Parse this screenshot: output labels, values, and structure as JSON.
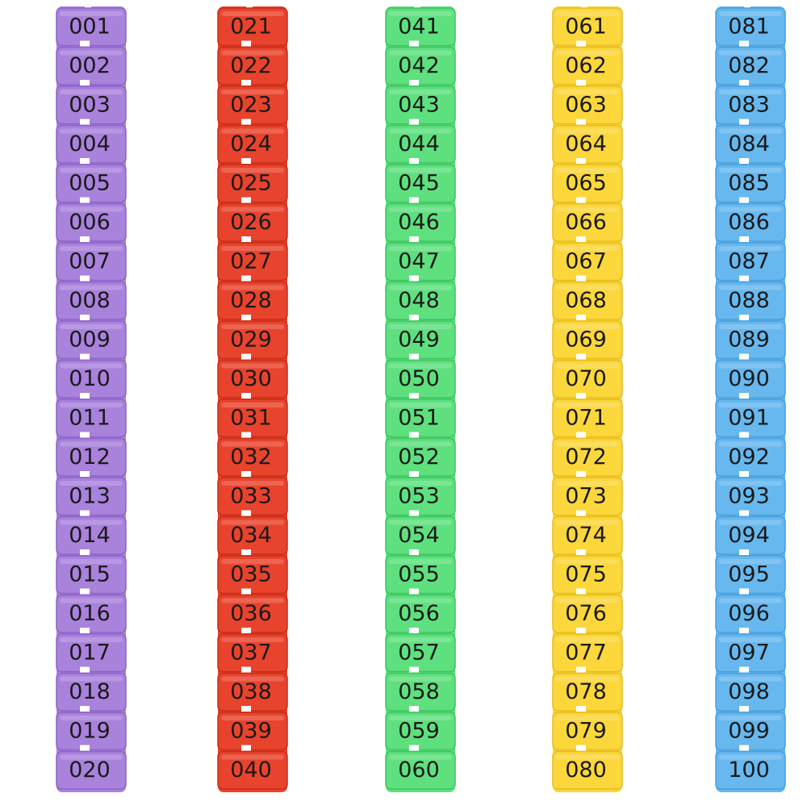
{
  "columns": [
    {
      "labels": [
        "001",
        "002",
        "003",
        "004",
        "005",
        "006",
        "007",
        "008",
        "009",
        "010",
        "011",
        "012",
        "013",
        "014",
        "015",
        "016",
        "017",
        "018",
        "019",
        "020"
      ]
    },
    {
      "labels": [
        "021",
        "022",
        "023",
        "024",
        "025",
        "026",
        "027",
        "028",
        "029",
        "030",
        "031",
        "032",
        "033",
        "034",
        "035",
        "036",
        "037",
        "038",
        "039",
        "040"
      ]
    },
    {
      "labels": [
        "041",
        "042",
        "043",
        "044",
        "045",
        "046",
        "047",
        "048",
        "049",
        "050",
        "051",
        "052",
        "053",
        "054",
        "055",
        "056",
        "057",
        "058",
        "059",
        "060"
      ]
    },
    {
      "labels": [
        "061",
        "062",
        "063",
        "064",
        "065",
        "066",
        "067",
        "068",
        "069",
        "070",
        "071",
        "072",
        "073",
        "074",
        "075",
        "076",
        "077",
        "078",
        "079",
        "080"
      ]
    },
    {
      "labels": [
        "081",
        "082",
        "083",
        "084",
        "085",
        "086",
        "087",
        "088",
        "089",
        "090",
        "091",
        "092",
        "093",
        "094",
        "095",
        "096",
        "097",
        "098",
        "099",
        "100"
      ]
    }
  ]
}
